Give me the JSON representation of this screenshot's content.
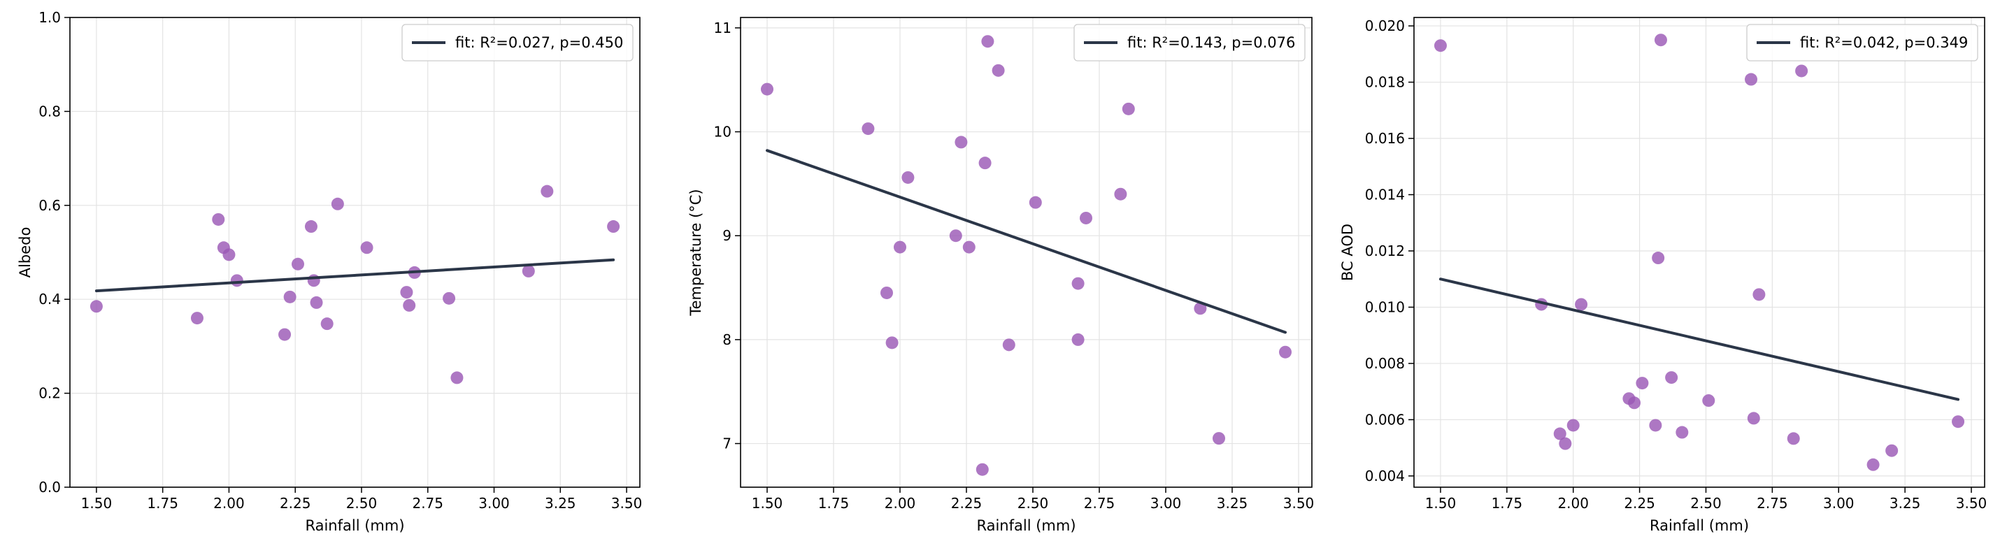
{
  "colors": {
    "point": "#9b59b6",
    "fit_line": "#2b3648",
    "grid": "#e3e3e3",
    "axis": "#000000"
  },
  "chart_data": [
    {
      "type": "scatter",
      "xlabel": "Rainfall (mm)",
      "ylabel": "Albedo",
      "xlim": [
        1.4,
        3.55
      ],
      "ylim": [
        0.0,
        1.0
      ],
      "xticks": [
        "1.50",
        "1.75",
        "2.00",
        "2.25",
        "2.50",
        "2.75",
        "3.00",
        "3.25",
        "3.50"
      ],
      "yticks": [
        "0.0",
        "0.2",
        "0.4",
        "0.6",
        "0.8",
        "1.0"
      ],
      "grid": true,
      "legend_position": "top-right",
      "legend_label": "fit: R²=0.027, p=0.450",
      "fit": {
        "x": [
          1.5,
          3.45
        ],
        "y": [
          0.418,
          0.484
        ]
      },
      "points": {
        "x": [
          1.5,
          1.88,
          1.96,
          1.98,
          2.0,
          2.03,
          2.21,
          2.23,
          2.26,
          2.31,
          2.32,
          2.33,
          2.37,
          2.41,
          2.52,
          2.67,
          2.68,
          2.7,
          2.83,
          2.86,
          3.13,
          3.2,
          3.45
        ],
        "y": [
          0.385,
          0.36,
          0.57,
          0.51,
          0.495,
          0.44,
          0.325,
          0.405,
          0.475,
          0.555,
          0.44,
          0.393,
          0.348,
          0.603,
          0.51,
          0.415,
          0.387,
          0.457,
          0.402,
          0.233,
          0.46,
          0.63,
          0.555
        ]
      }
    },
    {
      "type": "scatter",
      "xlabel": "Rainfall (mm)",
      "ylabel": "Temperature (°C)",
      "xlim": [
        1.4,
        3.55
      ],
      "ylim": [
        6.58,
        11.1
      ],
      "xticks": [
        "1.50",
        "1.75",
        "2.00",
        "2.25",
        "2.50",
        "2.75",
        "3.00",
        "3.25",
        "3.50"
      ],
      "yticks": [
        "7",
        "8",
        "9",
        "10",
        "11"
      ],
      "grid": true,
      "legend_position": "top-right",
      "legend_label": "fit: R²=0.143, p=0.076",
      "fit": {
        "x": [
          1.5,
          3.45
        ],
        "y": [
          9.82,
          8.07
        ]
      },
      "points": {
        "x": [
          1.5,
          1.88,
          1.95,
          1.97,
          2.0,
          2.03,
          2.21,
          2.23,
          2.26,
          2.31,
          2.32,
          2.33,
          2.37,
          2.41,
          2.51,
          2.67,
          2.67,
          2.7,
          2.83,
          2.86,
          3.13,
          3.2,
          3.45
        ],
        "y": [
          10.41,
          10.03,
          8.45,
          7.97,
          8.89,
          9.56,
          9.0,
          9.9,
          8.89,
          6.75,
          9.7,
          10.87,
          10.59,
          7.95,
          9.32,
          8.0,
          8.54,
          9.17,
          9.4,
          10.22,
          8.3,
          7.05,
          7.88
        ]
      }
    },
    {
      "type": "scatter",
      "xlabel": "Rainfall (mm)",
      "ylabel": "BC AOD",
      "xlim": [
        1.4,
        3.55
      ],
      "ylim": [
        0.0036,
        0.0203
      ],
      "xticks": [
        "1.50",
        "1.75",
        "2.00",
        "2.25",
        "2.50",
        "2.75",
        "3.00",
        "3.25",
        "3.50"
      ],
      "yticks": [
        "0.004",
        "0.006",
        "0.008",
        "0.010",
        "0.012",
        "0.014",
        "0.016",
        "0.018",
        "0.020"
      ],
      "grid": true,
      "legend_position": "top-right",
      "legend_label": "fit: R²=0.042, p=0.349",
      "fit": {
        "x": [
          1.5,
          3.45
        ],
        "y": [
          0.011,
          0.00672
        ]
      },
      "points": {
        "x": [
          1.5,
          1.88,
          1.95,
          1.97,
          2.0,
          2.03,
          2.21,
          2.23,
          2.26,
          2.31,
          2.32,
          2.33,
          2.37,
          2.41,
          2.51,
          2.67,
          2.68,
          2.7,
          2.83,
          2.86,
          3.13,
          3.2,
          3.45
        ],
        "y": [
          0.0193,
          0.0101,
          0.0055,
          0.00515,
          0.0058,
          0.0101,
          0.00675,
          0.0066,
          0.0073,
          0.0058,
          0.01175,
          0.0195,
          0.0075,
          0.00555,
          0.00668,
          0.0181,
          0.00605,
          0.01045,
          0.00533,
          0.0184,
          0.0044,
          0.0049,
          0.00593
        ]
      }
    }
  ]
}
